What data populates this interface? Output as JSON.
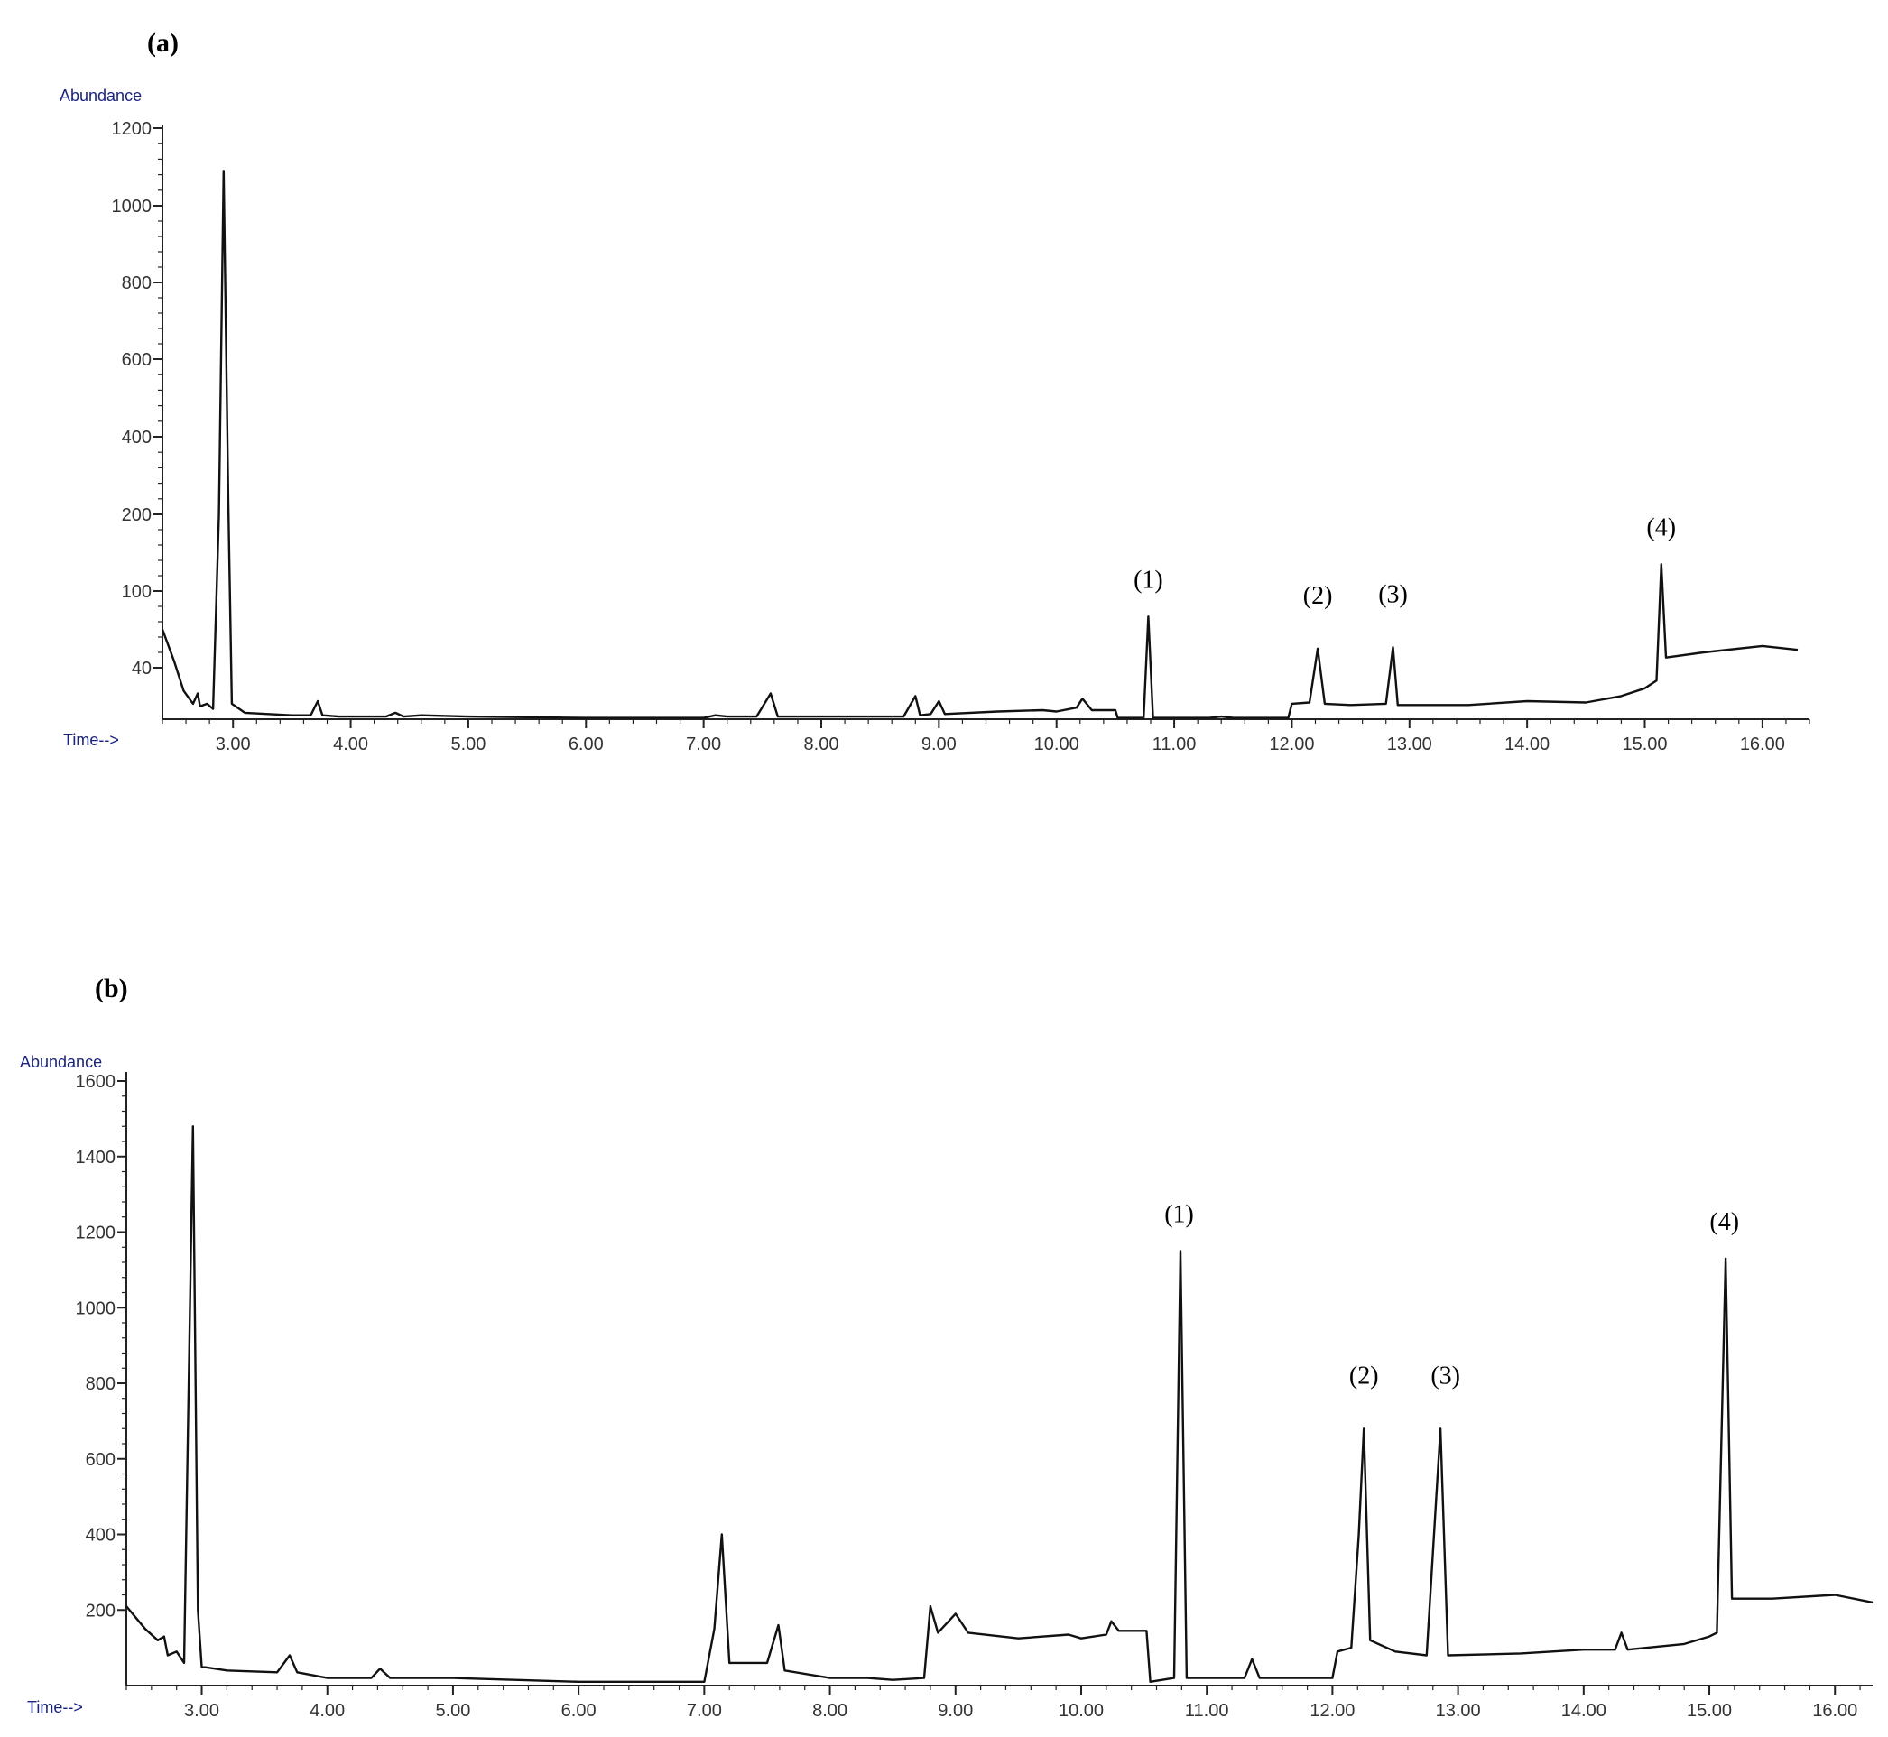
{
  "chart_data": [
    {
      "type": "line",
      "panel_label": "(a)",
      "ylabel": "Abundance",
      "xlabel": "Time-->",
      "xlim": [
        2.4,
        16.4
      ],
      "yticks": [
        "1200",
        "1000",
        "800",
        "600",
        "400",
        "200",
        "100",
        "40"
      ],
      "xticks": [
        "3.00",
        "4.00",
        "5.00",
        "6.00",
        "7.00",
        "8.00",
        "9.00",
        "10.00",
        "11.00",
        "12.00",
        "13.00",
        "14.00",
        "15.00",
        "16.00"
      ],
      "annotations": [
        {
          "text": "(1)",
          "x": 10.78
        },
        {
          "text": "(2)",
          "x": 12.22
        },
        {
          "text": "(3)",
          "x": 12.86
        },
        {
          "text": "(4)",
          "x": 15.14
        }
      ],
      "series": [
        {
          "values": [
            [
              2.4,
              70
            ],
            [
              2.5,
              45
            ],
            [
              2.58,
              22
            ],
            [
              2.66,
              12
            ],
            [
              2.7,
              20
            ],
            [
              2.72,
              10
            ],
            [
              2.78,
              12
            ],
            [
              2.83,
              8
            ],
            [
              2.88,
              200
            ],
            [
              2.92,
              1090
            ],
            [
              2.96,
              230
            ],
            [
              2.99,
              12
            ],
            [
              3.1,
              5
            ],
            [
              3.3,
              4
            ],
            [
              3.5,
              3
            ],
            [
              3.66,
              3
            ],
            [
              3.72,
              14
            ],
            [
              3.76,
              3
            ],
            [
              3.9,
              2
            ],
            [
              4.3,
              2
            ],
            [
              4.38,
              5
            ],
            [
              4.45,
              2
            ],
            [
              4.6,
              3
            ],
            [
              5.0,
              2
            ],
            [
              6.0,
              1
            ],
            [
              7.0,
              1
            ],
            [
              7.1,
              3
            ],
            [
              7.2,
              2
            ],
            [
              7.45,
              2
            ],
            [
              7.57,
              20
            ],
            [
              7.63,
              2
            ],
            [
              8.0,
              2
            ],
            [
              8.7,
              2
            ],
            [
              8.8,
              18
            ],
            [
              8.84,
              3
            ],
            [
              8.93,
              4
            ],
            [
              9.0,
              14
            ],
            [
              9.05,
              4
            ],
            [
              9.5,
              6
            ],
            [
              9.88,
              7
            ],
            [
              10.0,
              6
            ],
            [
              10.17,
              9
            ],
            [
              10.22,
              16
            ],
            [
              10.3,
              7
            ],
            [
              10.5,
              7
            ],
            [
              10.52,
              1
            ],
            [
              10.74,
              1
            ],
            [
              10.78,
              80
            ],
            [
              10.82,
              1
            ],
            [
              11.3,
              1
            ],
            [
              11.4,
              2
            ],
            [
              11.5,
              1
            ],
            [
              11.97,
              1
            ],
            [
              12.0,
              12
            ],
            [
              12.15,
              13
            ],
            [
              12.22,
              55
            ],
            [
              12.28,
              12
            ],
            [
              12.5,
              11
            ],
            [
              12.8,
              12
            ],
            [
              12.86,
              56
            ],
            [
              12.9,
              11
            ],
            [
              13.5,
              11
            ],
            [
              14.0,
              14
            ],
            [
              14.5,
              13
            ],
            [
              14.8,
              18
            ],
            [
              15.0,
              24
            ],
            [
              15.1,
              30
            ],
            [
              15.14,
              135
            ],
            [
              15.18,
              48
            ],
            [
              15.5,
              52
            ],
            [
              16.0,
              57
            ],
            [
              16.3,
              54
            ]
          ]
        }
      ]
    },
    {
      "type": "line",
      "panel_label": "(b)",
      "ylabel": "Abundance",
      "xlabel": "Time-->",
      "xlim": [
        2.4,
        16.3
      ],
      "ylim": [
        0,
        1600
      ],
      "yticks": [
        "1600",
        "1400",
        "1200",
        "1000",
        "800",
        "600",
        "400",
        "200"
      ],
      "xticks": [
        "3.00",
        "4.00",
        "5.00",
        "6.00",
        "7.00",
        "8.00",
        "9.00",
        "10.00",
        "11.00",
        "12.00",
        "13.00",
        "14.00",
        "15.00",
        "16.00"
      ],
      "annotations": [
        {
          "text": "(1)",
          "x": 10.78
        },
        {
          "text": "(2)",
          "x": 12.25
        },
        {
          "text": "(3)",
          "x": 12.9
        },
        {
          "text": "(4)",
          "x": 15.12
        }
      ],
      "series": [
        {
          "values": [
            [
              2.4,
              210
            ],
            [
              2.55,
              150
            ],
            [
              2.65,
              120
            ],
            [
              2.7,
              130
            ],
            [
              2.73,
              80
            ],
            [
              2.8,
              90
            ],
            [
              2.86,
              60
            ],
            [
              2.93,
              1480
            ],
            [
              2.97,
              200
            ],
            [
              3.0,
              50
            ],
            [
              3.2,
              40
            ],
            [
              3.6,
              35
            ],
            [
              3.7,
              80
            ],
            [
              3.76,
              35
            ],
            [
              4.0,
              20
            ],
            [
              4.35,
              20
            ],
            [
              4.42,
              45
            ],
            [
              4.5,
              20
            ],
            [
              5.0,
              20
            ],
            [
              6.0,
              10
            ],
            [
              7.0,
              10
            ],
            [
              7.08,
              150
            ],
            [
              7.14,
              400
            ],
            [
              7.2,
              60
            ],
            [
              7.5,
              60
            ],
            [
              7.59,
              160
            ],
            [
              7.64,
              40
            ],
            [
              8.0,
              20
            ],
            [
              8.3,
              20
            ],
            [
              8.5,
              15
            ],
            [
              8.75,
              20
            ],
            [
              8.8,
              210
            ],
            [
              8.86,
              140
            ],
            [
              9.0,
              190
            ],
            [
              9.1,
              140
            ],
            [
              9.5,
              125
            ],
            [
              9.9,
              135
            ],
            [
              10.0,
              125
            ],
            [
              10.2,
              135
            ],
            [
              10.24,
              170
            ],
            [
              10.3,
              145
            ],
            [
              10.52,
              145
            ],
            [
              10.55,
              10
            ],
            [
              10.74,
              20
            ],
            [
              10.79,
              1150
            ],
            [
              10.84,
              20
            ],
            [
              11.3,
              20
            ],
            [
              11.36,
              70
            ],
            [
              11.42,
              20
            ],
            [
              12.0,
              20
            ],
            [
              12.04,
              90
            ],
            [
              12.15,
              100
            ],
            [
              12.21,
              400
            ],
            [
              12.25,
              680
            ],
            [
              12.3,
              120
            ],
            [
              12.5,
              90
            ],
            [
              12.75,
              80
            ],
            [
              12.86,
              680
            ],
            [
              12.92,
              80
            ],
            [
              13.5,
              85
            ],
            [
              14.0,
              95
            ],
            [
              14.25,
              95
            ],
            [
              14.3,
              140
            ],
            [
              14.35,
              95
            ],
            [
              14.8,
              110
            ],
            [
              15.0,
              130
            ],
            [
              15.06,
              140
            ],
            [
              15.13,
              1130
            ],
            [
              15.18,
              230
            ],
            [
              15.5,
              230
            ],
            [
              16.0,
              240
            ],
            [
              16.3,
              220
            ]
          ]
        }
      ]
    }
  ]
}
